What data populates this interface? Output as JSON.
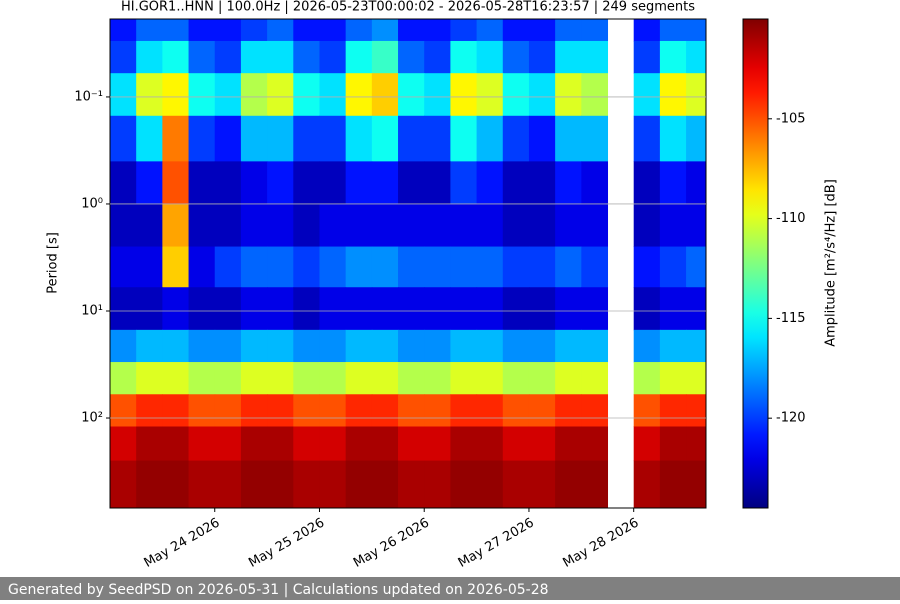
{
  "chart_data": {
    "type": "heatmap",
    "title": "HI.GOR1..HNN | 100.0Hz | 2026-05-23T00:00:02 - 2026-05-28T16:23:57 | 249 segments",
    "y_label": "Period [s]",
    "colorbar_label": "Amplitude [m²/s⁴/Hz] [dB]",
    "footer": "Generated by SeedPSD on 2026-05-31 | Calculations updated on 2026-05-28",
    "log_y": true,
    "grid": true,
    "colormap": "jet",
    "xlim": [
      "2026-05-23T00:00:02",
      "2026-05-28T16:34:00"
    ],
    "xticks": [
      {
        "value": "2026-05-24",
        "label": "May 24 2026"
      },
      {
        "value": "2026-05-25",
        "label": "May 25 2026"
      },
      {
        "value": "2026-05-26",
        "label": "May 26 2026"
      },
      {
        "value": "2026-05-27",
        "label": "May 27 2026"
      },
      {
        "value": "2026-05-28",
        "label": "May 28 2026"
      }
    ],
    "ylim": [
      693,
      0.0187
    ],
    "yticks": [
      {
        "value": 0.1,
        "label": "10⁻¹"
      },
      {
        "value": 1,
        "label": "10⁰"
      },
      {
        "value": 10,
        "label": "10¹"
      },
      {
        "value": 100,
        "label": "10²"
      }
    ],
    "clim": [
      -124.5,
      -100
    ],
    "cticks": [
      -105,
      -110,
      -115,
      -120
    ],
    "x_edges": [
      "2026-05-23T00:00",
      "2026-05-23T06:00",
      "2026-05-23T12:00",
      "2026-05-23T18:00",
      "2026-05-24T00:00",
      "2026-05-24T06:00",
      "2026-05-24T12:00",
      "2026-05-24T18:00",
      "2026-05-25T00:00",
      "2026-05-25T06:00",
      "2026-05-25T12:00",
      "2026-05-25T18:00",
      "2026-05-26T00:00",
      "2026-05-26T06:00",
      "2026-05-26T12:00",
      "2026-05-26T18:00",
      "2026-05-27T00:00",
      "2026-05-27T06:00",
      "2026-05-27T12:00",
      "2026-05-27T18:00",
      "2026-05-28T00:00",
      "2026-05-28T06:00",
      "2026-05-28T12:00",
      "2026-05-28T18:00"
    ],
    "y_edges": [
      0.0187,
      0.03,
      0.06,
      0.15,
      0.4,
      1,
      2.5,
      6,
      15,
      30,
      60,
      120,
      250,
      693
    ],
    "z": [
      [
        -121,
        -119,
        -119,
        -121,
        -121,
        -120,
        -119,
        -121,
        -121,
        -119,
        -118,
        -121,
        -121,
        -120,
        -119,
        -121,
        -121,
        -119,
        -119,
        null,
        -121,
        -119,
        -119
      ],
      [
        -120,
        -116,
        -115,
        -119,
        -120,
        -116,
        -116,
        -119,
        -120,
        -115,
        -114,
        -119,
        -120,
        -115,
        -116,
        -119,
        -120,
        -116,
        -116,
        null,
        -120,
        -115,
        -116
      ],
      [
        -116,
        -110,
        -109,
        -115,
        -116,
        -111,
        -110,
        -115,
        -116,
        -109,
        -108,
        -115,
        -116,
        -109,
        -110,
        -115,
        -116,
        -110,
        -111,
        null,
        -116,
        -109,
        -110
      ],
      [
        -120,
        -116,
        -106,
        -120,
        -121,
        -117,
        -117,
        -120,
        -120,
        -116,
        -115,
        -120,
        -120,
        -115,
        -117,
        -120,
        -121,
        -117,
        -117,
        null,
        -120,
        -116,
        -117
      ],
      [
        -123,
        -121,
        -105,
        -123,
        -123,
        -122,
        -121,
        -123,
        -123,
        -121,
        -121,
        -123,
        -123,
        -120,
        -121,
        -123,
        -123,
        -121,
        -122,
        null,
        -123,
        -121,
        -122
      ],
      [
        -123,
        -123,
        -107,
        -123,
        -123,
        -122,
        -122,
        -123,
        -122,
        -122,
        -122,
        -122,
        -122,
        -122,
        -122,
        -123,
        -123,
        -122,
        -122,
        null,
        -123,
        -122,
        -122
      ],
      [
        -122,
        -122,
        -108,
        -122,
        -120,
        -119,
        -119,
        -120,
        -119,
        -118,
        -118,
        -119,
        -119,
        -119,
        -119,
        -120,
        -120,
        -119,
        -120,
        null,
        -121,
        -120,
        -119
      ],
      [
        -123,
        -123,
        -122,
        -123,
        -123,
        -122,
        -122,
        -123,
        -122,
        -122,
        -122,
        -122,
        -122,
        -122,
        -122,
        -123,
        -123,
        -122,
        -122,
        null,
        -123,
        -122,
        -122
      ],
      [
        -118,
        -117,
        -117,
        -118,
        -118,
        -117,
        -117,
        -118,
        -118,
        -117,
        -117,
        -118,
        -118,
        -117,
        -117,
        -118,
        -118,
        -117,
        -117,
        null,
        -118,
        -117,
        -117
      ],
      [
        -111,
        -110,
        -110,
        -111,
        -111,
        -110,
        -110,
        -111,
        -111,
        -110,
        -110,
        -111,
        -111,
        -110,
        -110,
        -111,
        -111,
        -110,
        -110,
        null,
        -111,
        -110,
        -110
      ],
      [
        -105,
        -104,
        -104,
        -105,
        -105,
        -104,
        -104,
        -105,
        -105,
        -104,
        -104,
        -105,
        -105,
        -104,
        -104,
        -105,
        -105,
        -104,
        -104,
        null,
        -105,
        -104,
        -104
      ],
      [
        -102,
        -101,
        -101,
        -102,
        -102,
        -101,
        -101,
        -102,
        -102,
        -101,
        -101,
        -102,
        -102,
        -101,
        -101,
        -102,
        -102,
        -101,
        -101,
        null,
        -102,
        -101,
        -101
      ],
      [
        -101,
        -100.5,
        -100.5,
        -101,
        -101,
        -100.5,
        -100.5,
        -101,
        -101,
        -100.5,
        -100.5,
        -101,
        -101,
        -100.5,
        -100.5,
        -101,
        -101,
        -100.5,
        -100.5,
        null,
        -101,
        -100.5,
        -100.5
      ]
    ]
  }
}
